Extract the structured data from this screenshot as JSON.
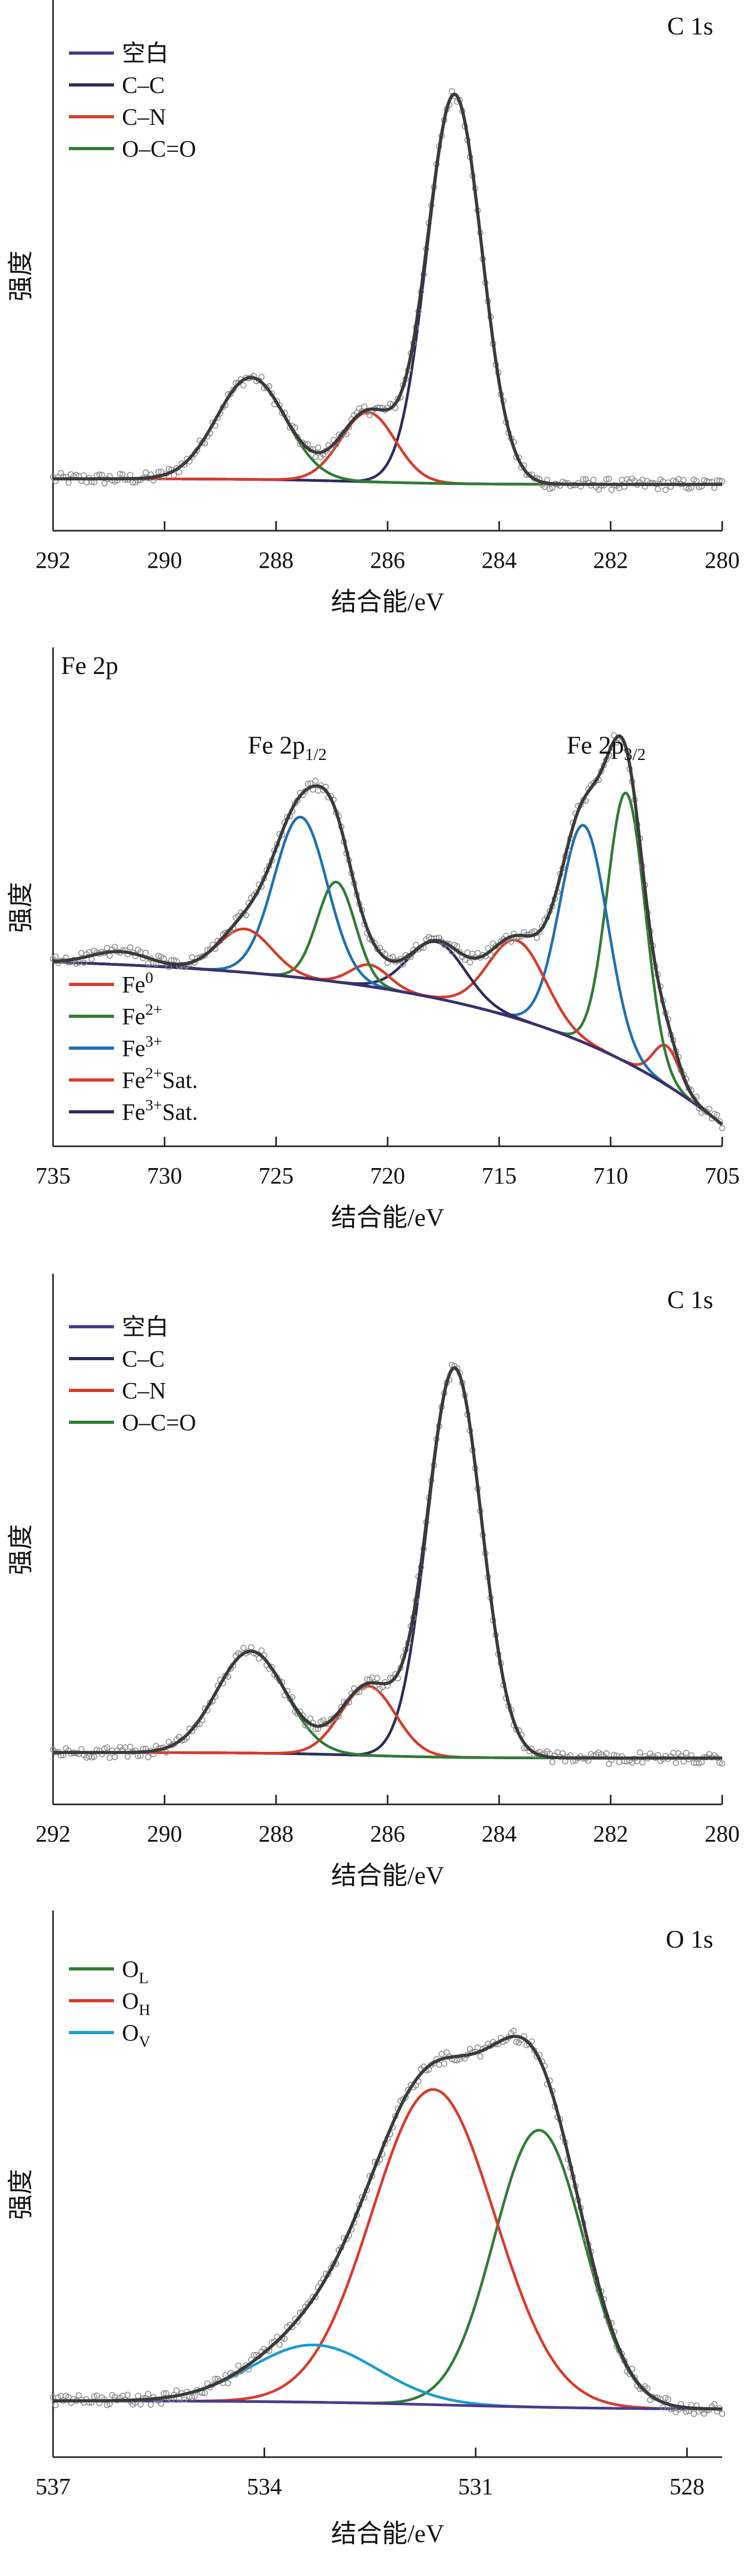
{
  "chart_data": [
    {
      "type": "line",
      "title": "C 1s",
      "xlabel": "结合能/eV",
      "ylabel": "强度",
      "xlim": [
        292,
        280
      ],
      "xticks": [
        292,
        290,
        288,
        286,
        284,
        282,
        280
      ],
      "ylim": [
        -0.1,
        1.0
      ],
      "legend_position": "top-left",
      "colors": {
        "data_points": "#8a8a8a",
        "envelope": "#3a3a3a"
      },
      "series": [
        {
          "name": "空白",
          "color": "#4b3a8c",
          "kind": "background",
          "params": {
            "lo": 0.0,
            "hi": 0.012,
            "center": 286.5,
            "width": 0.9
          }
        },
        {
          "name": "C–C",
          "color": "#2c2c5c",
          "kind": "peak",
          "params": {
            "center": 284.8,
            "height": 0.84,
            "fwhm": 1.15
          }
        },
        {
          "name": "C–N",
          "color": "#d93a2b",
          "kind": "peak",
          "params": {
            "center": 286.35,
            "height": 0.15,
            "fwhm": 1.15
          }
        },
        {
          "name": "O–C=O",
          "color": "#2e7d32",
          "kind": "peak",
          "params": {
            "center": 288.45,
            "height": 0.22,
            "fwhm": 1.45
          }
        }
      ]
    },
    {
      "type": "line",
      "title": "Fe 2p",
      "xlabel": "结合能/eV",
      "ylabel": "强度",
      "xlim": [
        735,
        705
      ],
      "xticks": [
        735,
        730,
        725,
        720,
        715,
        710,
        705
      ],
      "ylim": [
        -0.05,
        1.05
      ],
      "legend_position": "bottom-left",
      "annotations": [
        {
          "text": "Fe 2p",
          "sub": "1/2",
          "x": 724.5
        },
        {
          "text": "Fe 2p",
          "sub": "3/2",
          "x": 710.2
        }
      ],
      "colors": {
        "data_points": "#8a8a8a",
        "envelope": "#3a3a3a"
      },
      "series": [
        {
          "name": "Fe",
          "sup": "0",
          "color": "#d93a2b",
          "kind": "peak",
          "params": {
            "center": 707.5,
            "height": 0.09,
            "fwhm": 1.4
          }
        },
        {
          "name": "Fe",
          "sup": "2+",
          "color": "#2e7d32",
          "kind": "peak",
          "params": {
            "center": 709.3,
            "height": 0.62,
            "fwhm": 2.0
          }
        },
        {
          "name": "Fe",
          "sup": "3+",
          "color": "#1f6fb2",
          "kind": "peak",
          "params": {
            "center": 711.2,
            "height": 0.5,
            "fwhm": 2.5
          }
        },
        {
          "name": "Fe",
          "sup": "2+",
          "suffix": "Sat.",
          "color": "#d93a2b",
          "kind": "peak",
          "params": {
            "center": 714.2,
            "height": 0.18,
            "fwhm": 3.0
          }
        },
        {
          "name": "Fe",
          "sup": "3+",
          "suffix": "Sat.",
          "color": "#2c2c5c",
          "kind": "peak",
          "params": {
            "center": 717.8,
            "height": 0.13,
            "fwhm": 3.0
          }
        },
        {
          "name": "",
          "color": "#d93a2b",
          "kind": "peak",
          "params": {
            "center": 720.8,
            "height": 0.05,
            "fwhm": 2.0
          }
        },
        {
          "name": "",
          "color": "#2e7d32",
          "kind": "peak",
          "params": {
            "center": 722.3,
            "height": 0.23,
            "fwhm": 2.0
          }
        },
        {
          "name": "",
          "color": "#1f6fb2",
          "kind": "peak",
          "params": {
            "center": 723.9,
            "height": 0.37,
            "fwhm": 2.8
          }
        },
        {
          "name": "",
          "color": "#d93a2b",
          "kind": "peak",
          "params": {
            "center": 726.4,
            "height": 0.1,
            "fwhm": 2.8
          }
        },
        {
          "name": "",
          "color": "#2c2c5c",
          "kind": "peak",
          "params": {
            "center": 732.0,
            "height": 0.03,
            "fwhm": 3.0
          }
        },
        {
          "name": "",
          "color": "#3a3070",
          "kind": "background",
          "params": {
            "x0": 705,
            "x1": 735,
            "p": 0.48
          }
        }
      ]
    },
    {
      "type": "line",
      "title": "C 1s",
      "xlabel": "结合能/eV",
      "ylabel": "强度",
      "xlim": [
        292,
        280
      ],
      "xticks": [
        292,
        290,
        288,
        286,
        284,
        282,
        280
      ],
      "ylim": [
        -0.1,
        1.0
      ],
      "legend_position": "top-left",
      "colors": {
        "data_points": "#8a8a8a",
        "envelope": "#3a3a3a"
      },
      "series": [
        {
          "name": "空白",
          "color": "#4b3a8c",
          "kind": "background",
          "params": {
            "lo": 0.0,
            "hi": 0.012,
            "center": 286.5,
            "width": 0.9
          }
        },
        {
          "name": "C–C",
          "color": "#2c2c5c",
          "kind": "peak",
          "params": {
            "center": 284.8,
            "height": 0.84,
            "fwhm": 1.15
          }
        },
        {
          "name": "C–N",
          "color": "#d93a2b",
          "kind": "peak",
          "params": {
            "center": 286.35,
            "height": 0.15,
            "fwhm": 1.15
          }
        },
        {
          "name": "O–C=O",
          "color": "#2e7d32",
          "kind": "peak",
          "params": {
            "center": 288.45,
            "height": 0.22,
            "fwhm": 1.45
          }
        }
      ]
    },
    {
      "type": "line",
      "title": "O 1s",
      "xlabel": "结合能/eV",
      "ylabel": "强度",
      "xlim": [
        537,
        527.5
      ],
      "xticks": [
        537,
        534,
        531,
        528
      ],
      "ylim": [
        -0.1,
        1.0
      ],
      "legend_position": "top-left",
      "colors": {
        "data_points": "#8a8a8a",
        "envelope": "#3a3a3a"
      },
      "series": [
        {
          "name": "O",
          "sub": "L",
          "color": "#2e7d32",
          "kind": "peak",
          "params": {
            "center": 530.1,
            "height": 0.58,
            "fwhm": 1.5
          }
        },
        {
          "name": "O",
          "sub": "H",
          "color": "#d93a2b",
          "kind": "peak",
          "params": {
            "center": 531.6,
            "height": 0.66,
            "fwhm": 2.05
          }
        },
        {
          "name": "O",
          "sub": "V",
          "color": "#1a9bd0",
          "kind": "peak",
          "params": {
            "center": 533.3,
            "height": 0.12,
            "fwhm": 2.1
          }
        },
        {
          "name": "",
          "color": "#4b3a8c",
          "kind": "background",
          "params": {
            "lo": 0.0,
            "hi": 0.018,
            "center": 531.4,
            "width": 1.2
          }
        }
      ]
    }
  ]
}
